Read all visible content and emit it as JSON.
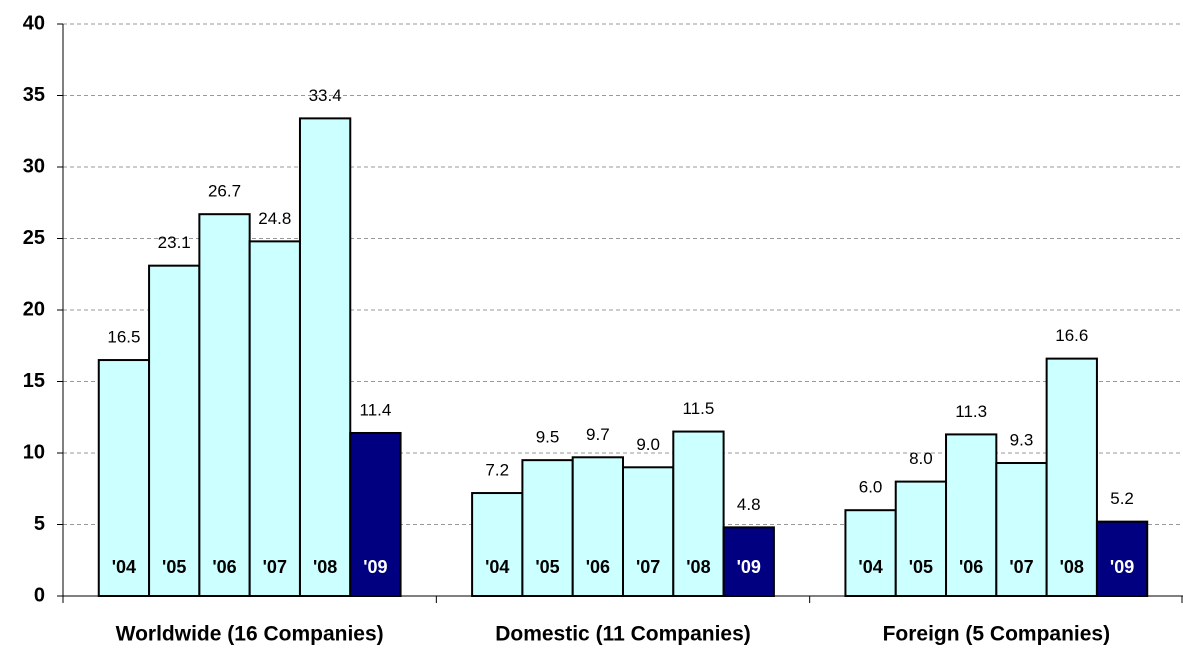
{
  "chart_data": {
    "type": "bar",
    "categories": [
      "Worldwide (16 Companies)",
      "Domestic (11 Companies)",
      "Foreign (5 Companies)"
    ],
    "series": [
      {
        "name": "'04",
        "color": "#ccffff",
        "values": [
          16.5,
          7.2,
          6.0
        ],
        "value_labels": [
          "16.5",
          "7.2",
          "6.0"
        ]
      },
      {
        "name": "'05",
        "color": "#ccffff",
        "values": [
          23.1,
          9.5,
          8.0
        ],
        "value_labels": [
          "23.1",
          "9.5",
          "8.0"
        ]
      },
      {
        "name": "'06",
        "color": "#ccffff",
        "values": [
          26.7,
          9.7,
          11.3
        ],
        "value_labels": [
          "26.7",
          "9.7",
          "11.3"
        ]
      },
      {
        "name": "'07",
        "color": "#ccffff",
        "values": [
          24.8,
          9.0,
          9.3
        ],
        "value_labels": [
          "24.8",
          "9.0",
          "9.3"
        ]
      },
      {
        "name": "'08",
        "color": "#ccffff",
        "values": [
          33.4,
          11.5,
          16.6
        ],
        "value_labels": [
          "33.4",
          "11.5",
          "16.6"
        ]
      },
      {
        "name": "'09",
        "color": "#000080",
        "values": [
          11.4,
          4.8,
          5.2
        ],
        "value_labels": [
          "11.4",
          "4.8",
          "5.2"
        ]
      }
    ],
    "ylim": [
      0,
      40
    ],
    "yticks": [
      0,
      5,
      10,
      15,
      20,
      25,
      30,
      35,
      40
    ],
    "grid": true
  }
}
